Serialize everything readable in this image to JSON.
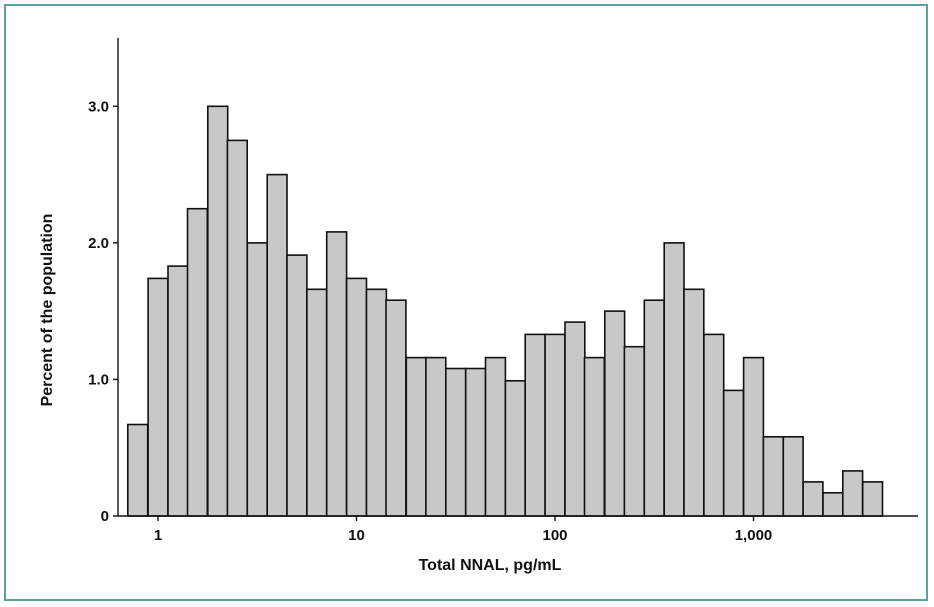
{
  "chart_data": {
    "type": "bar",
    "xlabel": "Total NNAL, pg/mL",
    "ylabel": "Percent of the population",
    "x_scale": "log",
    "x_ticks": [
      {
        "value": 1,
        "label": "1"
      },
      {
        "value": 10,
        "label": "10"
      },
      {
        "value": 100,
        "label": "100"
      },
      {
        "value": 1000,
        "label": "1,000"
      }
    ],
    "y_ticks": [
      {
        "value": 0,
        "label": "0"
      },
      {
        "value": 1.0,
        "label": "1.0"
      },
      {
        "value": 2.0,
        "label": "2.0"
      },
      {
        "value": 3.0,
        "label": "3.0"
      }
    ],
    "ylim": [
      0,
      3.5
    ],
    "bin_centers": [
      0.79,
      1.0,
      1.26,
      1.58,
      2.0,
      2.51,
      3.16,
      3.98,
      5.01,
      6.31,
      7.94,
      10.0,
      12.6,
      15.8,
      20.0,
      25.1,
      31.6,
      39.8,
      50.1,
      63.1,
      79.4,
      100,
      126,
      158,
      200,
      251,
      316,
      398,
      501,
      631,
      794,
      1000,
      1259,
      1585,
      1995,
      2512,
      3162,
      3981
    ],
    "values": [
      0.67,
      1.74,
      1.83,
      2.25,
      3.0,
      2.75,
      2.0,
      2.5,
      1.91,
      1.66,
      2.08,
      1.74,
      1.66,
      1.58,
      1.16,
      1.16,
      1.08,
      1.08,
      1.16,
      0.99,
      1.33,
      1.33,
      1.42,
      1.16,
      1.5,
      1.24,
      1.58,
      2.0,
      1.66,
      1.33,
      0.92,
      1.16,
      0.58,
      0.58,
      0.25,
      0.17,
      0.33,
      0.25
    ],
    "bar_color": "#c8c8c8",
    "frame_color": "#5aa39a"
  }
}
